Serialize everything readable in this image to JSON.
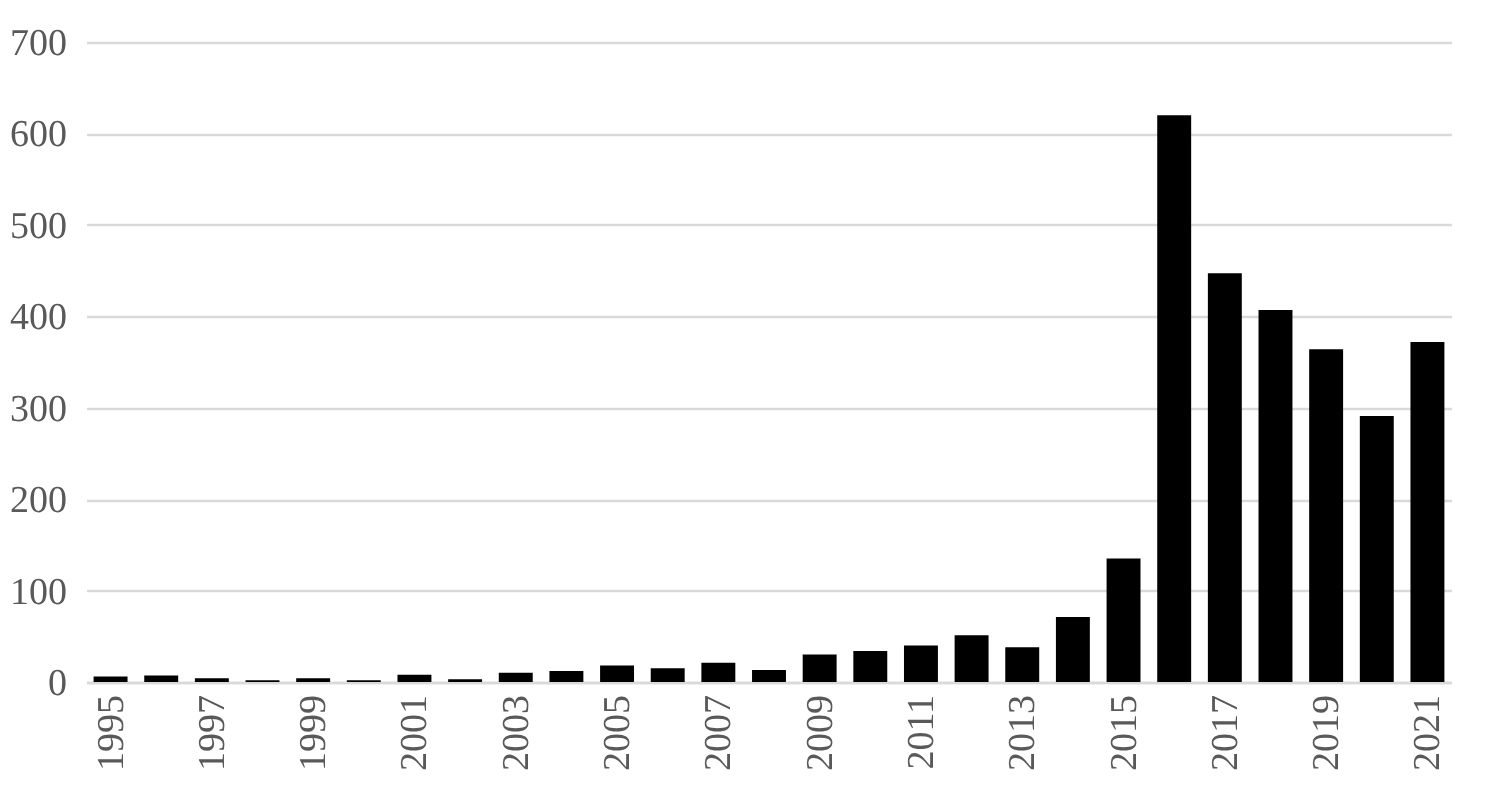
{
  "chart_data": {
    "type": "bar",
    "categories": [
      "1995",
      null,
      "1997",
      null,
      "1999",
      null,
      "2001",
      null,
      "2003",
      null,
      "2005",
      null,
      "2007",
      null,
      "2009",
      null,
      "2011",
      null,
      "2013",
      null,
      "2015",
      null,
      "2017",
      null,
      "2019",
      null,
      "2021"
    ],
    "values": [
      6,
      7,
      4,
      2,
      4,
      2,
      8,
      3,
      10,
      12,
      18,
      15,
      21,
      13,
      30,
      34,
      40,
      51,
      38,
      71,
      135,
      620,
      447,
      407,
      364,
      291,
      372
    ],
    "color": "#000000",
    "ylim": [
      0,
      700
    ],
    "yticks": [
      0,
      100,
      200,
      300,
      400,
      500,
      600,
      700
    ],
    "grid": "y"
  }
}
